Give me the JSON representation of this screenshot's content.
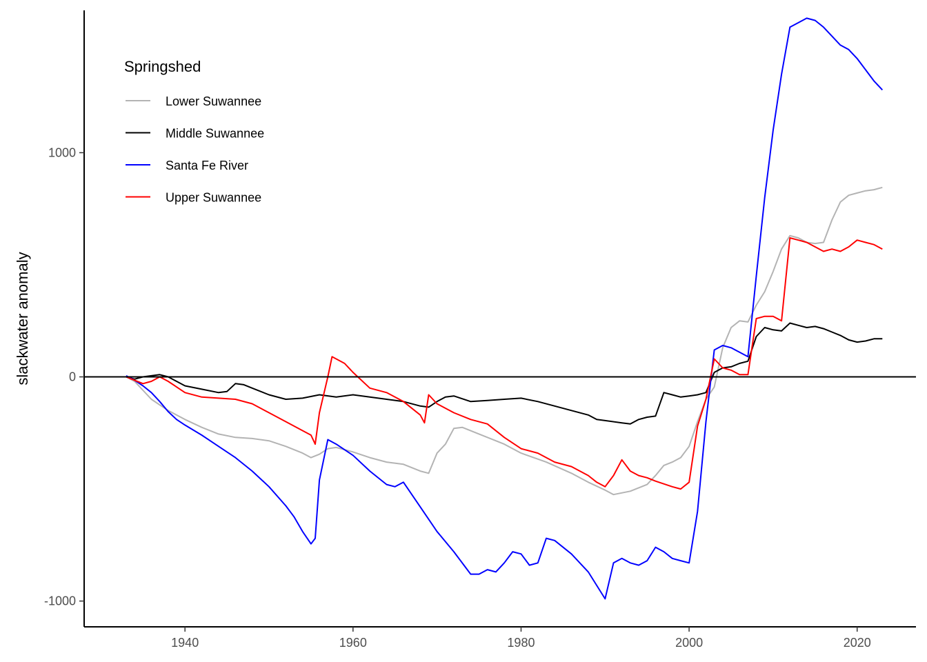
{
  "chart_data": {
    "type": "line",
    "title": "",
    "xlabel": "",
    "ylabel": "slackwater anomaly",
    "xlim": [
      1928,
      2027
    ],
    "ylim": [
      -1115,
      1635
    ],
    "x_ticks": [
      1940,
      1960,
      1980,
      2000,
      2020
    ],
    "y_ticks": [
      -1000,
      0,
      1000
    ],
    "grid": false,
    "reference_line": 0,
    "legend": {
      "title": "Springshed",
      "position": "top-left"
    },
    "series": [
      {
        "name": "Lower Suwannee",
        "color": "#b3b3b3",
        "points": [
          [
            1933,
            0
          ],
          [
            1934,
            -20
          ],
          [
            1935,
            -60
          ],
          [
            1936,
            -100
          ],
          [
            1937,
            -125
          ],
          [
            1938,
            -150
          ],
          [
            1940,
            -190
          ],
          [
            1942,
            -225
          ],
          [
            1944,
            -255
          ],
          [
            1946,
            -270
          ],
          [
            1948,
            -275
          ],
          [
            1950,
            -285
          ],
          [
            1952,
            -310
          ],
          [
            1954,
            -340
          ],
          [
            1955,
            -360
          ],
          [
            1956,
            -345
          ],
          [
            1957,
            -320
          ],
          [
            1958,
            -315
          ],
          [
            1960,
            -335
          ],
          [
            1962,
            -360
          ],
          [
            1964,
            -380
          ],
          [
            1966,
            -390
          ],
          [
            1968,
            -420
          ],
          [
            1969,
            -430
          ],
          [
            1970,
            -340
          ],
          [
            1971,
            -300
          ],
          [
            1972,
            -230
          ],
          [
            1973,
            -225
          ],
          [
            1975,
            -255
          ],
          [
            1978,
            -300
          ],
          [
            1980,
            -340
          ],
          [
            1983,
            -380
          ],
          [
            1986,
            -430
          ],
          [
            1988,
            -470
          ],
          [
            1990,
            -505
          ],
          [
            1991,
            -525
          ],
          [
            1993,
            -510
          ],
          [
            1995,
            -480
          ],
          [
            1996,
            -440
          ],
          [
            1997,
            -395
          ],
          [
            1998,
            -380
          ],
          [
            1999,
            -360
          ],
          [
            2000,
            -310
          ],
          [
            2001,
            -200
          ],
          [
            2002,
            -100
          ],
          [
            2003,
            -45
          ],
          [
            2004,
            130
          ],
          [
            2005,
            220
          ],
          [
            2006,
            250
          ],
          [
            2007,
            245
          ],
          [
            2008,
            320
          ],
          [
            2009,
            380
          ],
          [
            2010,
            470
          ],
          [
            2011,
            570
          ],
          [
            2012,
            630
          ],
          [
            2013,
            620
          ],
          [
            2014,
            600
          ],
          [
            2015,
            595
          ],
          [
            2016,
            600
          ],
          [
            2017,
            700
          ],
          [
            2018,
            780
          ],
          [
            2019,
            810
          ],
          [
            2020,
            820
          ],
          [
            2021,
            830
          ],
          [
            2022,
            835
          ],
          [
            2023,
            845
          ]
        ]
      },
      {
        "name": "Middle Suwannee",
        "color": "#000000",
        "points": [
          [
            1933,
            0
          ],
          [
            1934,
            -10
          ],
          [
            1935,
            0
          ],
          [
            1936,
            5
          ],
          [
            1937,
            10
          ],
          [
            1938,
            0
          ],
          [
            1939,
            -20
          ],
          [
            1940,
            -40
          ],
          [
            1942,
            -55
          ],
          [
            1944,
            -70
          ],
          [
            1945,
            -65
          ],
          [
            1946,
            -30
          ],
          [
            1947,
            -35
          ],
          [
            1948,
            -50
          ],
          [
            1950,
            -80
          ],
          [
            1952,
            -100
          ],
          [
            1954,
            -95
          ],
          [
            1956,
            -80
          ],
          [
            1958,
            -90
          ],
          [
            1960,
            -80
          ],
          [
            1962,
            -90
          ],
          [
            1964,
            -100
          ],
          [
            1966,
            -110
          ],
          [
            1968,
            -130
          ],
          [
            1969,
            -135
          ],
          [
            1970,
            -110
          ],
          [
            1971,
            -90
          ],
          [
            1972,
            -85
          ],
          [
            1974,
            -110
          ],
          [
            1976,
            -105
          ],
          [
            1978,
            -100
          ],
          [
            1980,
            -95
          ],
          [
            1982,
            -110
          ],
          [
            1984,
            -130
          ],
          [
            1986,
            -150
          ],
          [
            1988,
            -170
          ],
          [
            1989,
            -190
          ],
          [
            1990,
            -195
          ],
          [
            1992,
            -205
          ],
          [
            1993,
            -210
          ],
          [
            1994,
            -190
          ],
          [
            1995,
            -180
          ],
          [
            1996,
            -175
          ],
          [
            1997,
            -70
          ],
          [
            1998,
            -80
          ],
          [
            1999,
            -90
          ],
          [
            2000,
            -85
          ],
          [
            2001,
            -80
          ],
          [
            2002,
            -70
          ],
          [
            2003,
            20
          ],
          [
            2004,
            40
          ],
          [
            2005,
            45
          ],
          [
            2006,
            60
          ],
          [
            2007,
            70
          ],
          [
            2008,
            180
          ],
          [
            2009,
            220
          ],
          [
            2010,
            210
          ],
          [
            2011,
            205
          ],
          [
            2012,
            240
          ],
          [
            2013,
            230
          ],
          [
            2014,
            220
          ],
          [
            2015,
            225
          ],
          [
            2016,
            215
          ],
          [
            2017,
            200
          ],
          [
            2018,
            185
          ],
          [
            2019,
            165
          ],
          [
            2020,
            155
          ],
          [
            2021,
            160
          ],
          [
            2022,
            170
          ],
          [
            2023,
            170
          ]
        ]
      },
      {
        "name": "Santa Fe River",
        "color": "#0000ff",
        "points": [
          [
            1933,
            5
          ],
          [
            1934,
            -15
          ],
          [
            1935,
            -40
          ],
          [
            1936,
            -70
          ],
          [
            1937,
            -110
          ],
          [
            1938,
            -155
          ],
          [
            1939,
            -190
          ],
          [
            1940,
            -215
          ],
          [
            1942,
            -260
          ],
          [
            1944,
            -310
          ],
          [
            1946,
            -360
          ],
          [
            1948,
            -420
          ],
          [
            1950,
            -490
          ],
          [
            1952,
            -575
          ],
          [
            1953,
            -625
          ],
          [
            1954,
            -690
          ],
          [
            1955,
            -745
          ],
          [
            1955.5,
            -720
          ],
          [
            1956,
            -460
          ],
          [
            1957,
            -280
          ],
          [
            1958,
            -300
          ],
          [
            1960,
            -350
          ],
          [
            1962,
            -420
          ],
          [
            1964,
            -480
          ],
          [
            1965,
            -490
          ],
          [
            1966,
            -470
          ],
          [
            1968,
            -580
          ],
          [
            1970,
            -690
          ],
          [
            1972,
            -780
          ],
          [
            1974,
            -880
          ],
          [
            1975,
            -880
          ],
          [
            1976,
            -860
          ],
          [
            1977,
            -870
          ],
          [
            1978,
            -830
          ],
          [
            1979,
            -780
          ],
          [
            1980,
            -790
          ],
          [
            1981,
            -840
          ],
          [
            1982,
            -830
          ],
          [
            1983,
            -720
          ],
          [
            1984,
            -730
          ],
          [
            1986,
            -790
          ],
          [
            1988,
            -870
          ],
          [
            1989,
            -930
          ],
          [
            1990,
            -990
          ],
          [
            1991,
            -830
          ],
          [
            1992,
            -810
          ],
          [
            1993,
            -830
          ],
          [
            1994,
            -840
          ],
          [
            1995,
            -820
          ],
          [
            1996,
            -760
          ],
          [
            1997,
            -780
          ],
          [
            1998,
            -810
          ],
          [
            1999,
            -820
          ],
          [
            2000,
            -830
          ],
          [
            2001,
            -600
          ],
          [
            2002,
            -200
          ],
          [
            2003,
            120
          ],
          [
            2004,
            140
          ],
          [
            2005,
            130
          ],
          [
            2006,
            110
          ],
          [
            2007,
            90
          ],
          [
            2008,
            450
          ],
          [
            2009,
            800
          ],
          [
            2010,
            1100
          ],
          [
            2011,
            1350
          ],
          [
            2012,
            1560
          ],
          [
            2013,
            1580
          ],
          [
            2014,
            1600
          ],
          [
            2015,
            1590
          ],
          [
            2016,
            1560
          ],
          [
            2017,
            1520
          ],
          [
            2018,
            1480
          ],
          [
            2019,
            1460
          ],
          [
            2020,
            1420
          ],
          [
            2021,
            1370
          ],
          [
            2022,
            1320
          ],
          [
            2023,
            1280
          ]
        ]
      },
      {
        "name": "Upper Suwannee",
        "color": "#ff0000",
        "points": [
          [
            1933,
            0
          ],
          [
            1934,
            -15
          ],
          [
            1935,
            -30
          ],
          [
            1936,
            -20
          ],
          [
            1937,
            0
          ],
          [
            1938,
            -20
          ],
          [
            1940,
            -70
          ],
          [
            1942,
            -90
          ],
          [
            1944,
            -95
          ],
          [
            1946,
            -100
          ],
          [
            1948,
            -120
          ],
          [
            1950,
            -160
          ],
          [
            1952,
            -200
          ],
          [
            1954,
            -240
          ],
          [
            1955,
            -260
          ],
          [
            1955.5,
            -300
          ],
          [
            1956,
            -160
          ],
          [
            1957,
            0
          ],
          [
            1957.5,
            90
          ],
          [
            1958,
            80
          ],
          [
            1959,
            60
          ],
          [
            1960,
            20
          ],
          [
            1962,
            -50
          ],
          [
            1964,
            -70
          ],
          [
            1966,
            -110
          ],
          [
            1968,
            -170
          ],
          [
            1968.5,
            -205
          ],
          [
            1969,
            -80
          ],
          [
            1970,
            -120
          ],
          [
            1972,
            -160
          ],
          [
            1974,
            -190
          ],
          [
            1976,
            -210
          ],
          [
            1978,
            -270
          ],
          [
            1980,
            -320
          ],
          [
            1982,
            -340
          ],
          [
            1984,
            -380
          ],
          [
            1986,
            -400
          ],
          [
            1988,
            -440
          ],
          [
            1989,
            -470
          ],
          [
            1990,
            -490
          ],
          [
            1991,
            -440
          ],
          [
            1992,
            -370
          ],
          [
            1993,
            -420
          ],
          [
            1994,
            -440
          ],
          [
            1995,
            -450
          ],
          [
            1996,
            -465
          ],
          [
            1998,
            -490
          ],
          [
            1999,
            -500
          ],
          [
            2000,
            -470
          ],
          [
            2001,
            -220
          ],
          [
            2002,
            -100
          ],
          [
            2003,
            80
          ],
          [
            2004,
            40
          ],
          [
            2005,
            30
          ],
          [
            2006,
            10
          ],
          [
            2007,
            10
          ],
          [
            2008,
            260
          ],
          [
            2009,
            270
          ],
          [
            2010,
            270
          ],
          [
            2011,
            250
          ],
          [
            2012,
            620
          ],
          [
            2013,
            610
          ],
          [
            2014,
            600
          ],
          [
            2015,
            580
          ],
          [
            2016,
            560
          ],
          [
            2017,
            570
          ],
          [
            2018,
            560
          ],
          [
            2019,
            580
          ],
          [
            2020,
            610
          ],
          [
            2021,
            600
          ],
          [
            2022,
            590
          ],
          [
            2023,
            570
          ]
        ]
      }
    ]
  }
}
